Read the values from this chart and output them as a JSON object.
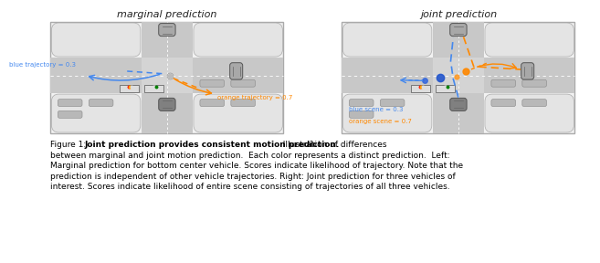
{
  "title_left": "marginal prediction",
  "title_right": "joint prediction",
  "blue_label_left": "blue trajectory = 0.3",
  "orange_label_left": "orange trajectory = 0.7",
  "blue_label_right": "blue scene = 0.3",
  "orange_label_right": "orange scene = 0.7",
  "figure_bg": "#ffffff",
  "panel_bg": "#f2f2f2",
  "road_color": "#c8c8c8",
  "block_color": "#e4e4e4",
  "inter_color": "#d4d4d4",
  "car_dark": "#808080",
  "car_med": "#a8a8a8",
  "car_light": "#c0c0c0",
  "blue_color": "#4488ee",
  "orange_color": "#ff8800",
  "text_color": "#111111",
  "border_color": "#aaaaaa",
  "caption_line1_prefix": "Figure 1:  ",
  "caption_line1_bold": "Joint prediction provides consistent motion prediction.",
  "caption_line1_rest": "  Illustration of differences",
  "caption_line2": "between marginal and joint motion prediction.  Each color represents a distinct prediction.  Left:",
  "caption_line3": "Marginal prediction for bottom center vehicle. Scores indicate likelihood of trajectory. Note that the",
  "caption_line4": "prediction is independent of other vehicle trajectories. Right: Joint prediction for three vehicles of",
  "caption_line5": "interest. Scores indicate likelihood of entire scene consisting of trajectories of all three vehicles."
}
